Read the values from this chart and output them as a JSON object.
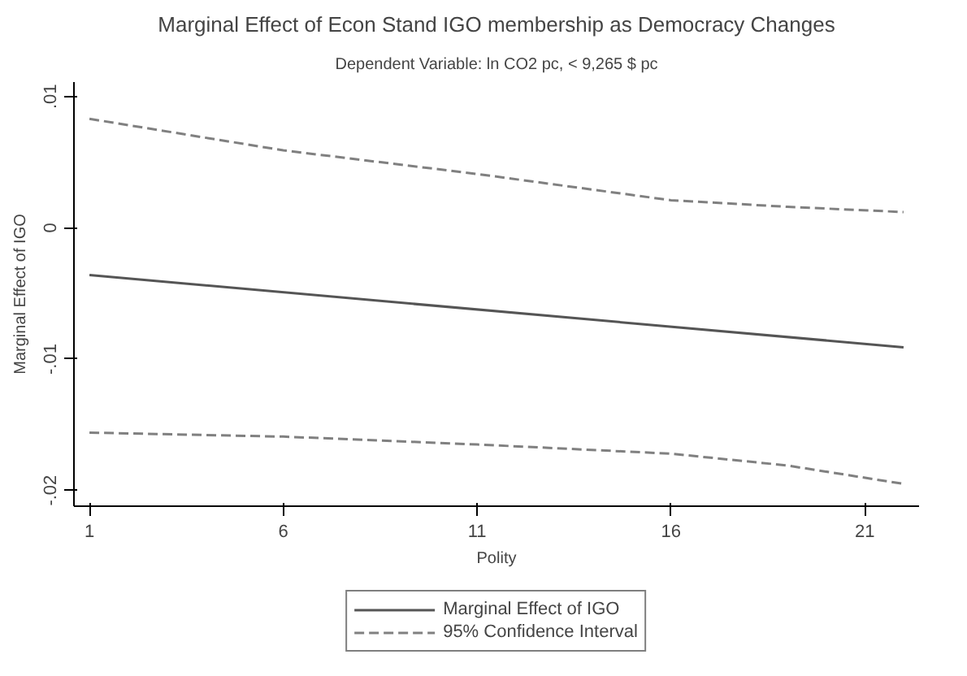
{
  "chart_data": {
    "type": "line",
    "title": "Marginal Effect of Econ Stand IGO membership as Democracy Changes",
    "subtitle": "Dependent Variable: ln CO2 pc, < 9,265 $ pc",
    "xlabel": "Polity",
    "ylabel": "Marginal Effect of IGO",
    "xlim": [
      0.6,
      22.4
    ],
    "xticks": [
      1,
      6,
      11,
      16,
      21
    ],
    "ylim": [
      -0.0212,
      0.0111
    ],
    "yticks": [
      {
        "value": 0.01,
        "label": ".01"
      },
      {
        "value": 0,
        "label": "0"
      },
      {
        "value": -0.01,
        "label": "-.01"
      },
      {
        "value": -0.02,
        "label": "-.02"
      }
    ],
    "grid": false,
    "legend": "bottom",
    "series": [
      {
        "name": "Marginal Effect of IGO",
        "color": "#555555",
        "line_style": "solid",
        "x": [
          1,
          22
        ],
        "values": [
          -0.0036,
          -0.0091
        ]
      },
      {
        "name": "95% Confidence Interval",
        "color": "#808080",
        "line_style": "dashed",
        "x": [
          1,
          6,
          11,
          16,
          19,
          22
        ],
        "values": [
          0.0083,
          0.0059,
          0.0041,
          0.0021,
          0.0016,
          0.0012
        ]
      },
      {
        "color": "#808080",
        "line_style": "dashed",
        "x": [
          1,
          6,
          11,
          16,
          19,
          22
        ],
        "values": [
          -0.0156,
          -0.0159,
          -0.0165,
          -0.0172,
          -0.0181,
          -0.0195
        ]
      }
    ]
  }
}
